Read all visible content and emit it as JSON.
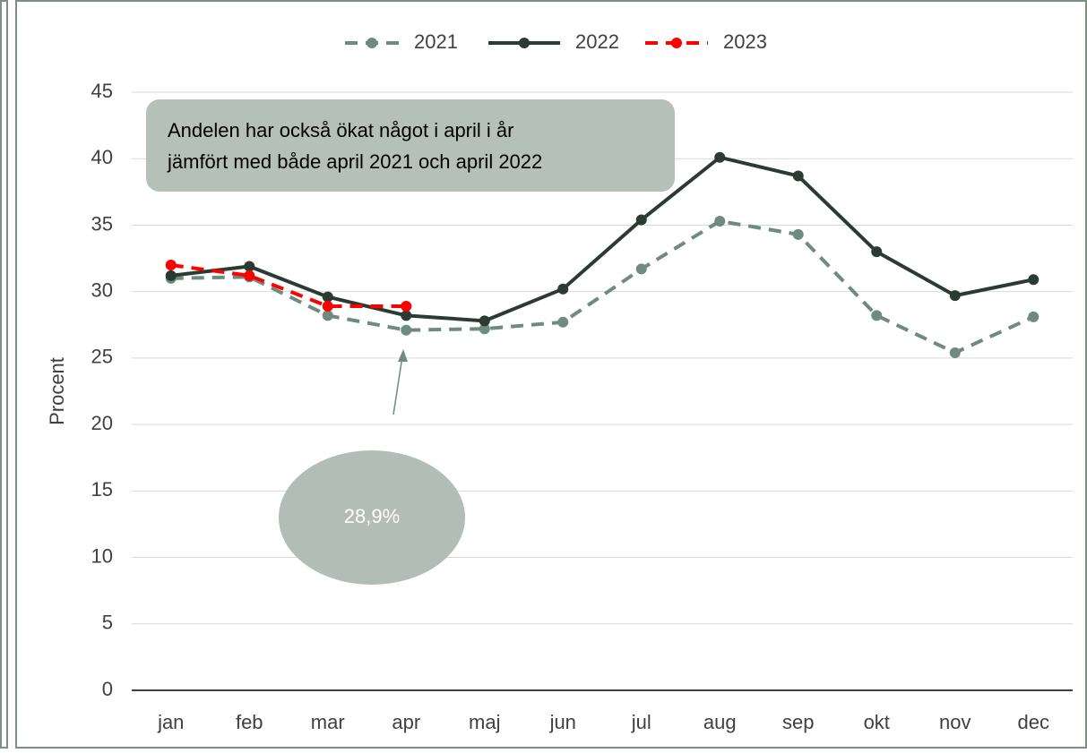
{
  "chart_data": {
    "type": "line",
    "ylabel": "Procent",
    "categories": [
      "jan",
      "feb",
      "mar",
      "apr",
      "maj",
      "jun",
      "jul",
      "aug",
      "sep",
      "okt",
      "nov",
      "dec"
    ],
    "series": [
      {
        "name": "2021",
        "color": "#6f8a7e",
        "dashed": true,
        "values": [
          31,
          31.1,
          28.2,
          27.1,
          27.2,
          27.7,
          31.7,
          35.3,
          34.3,
          28.2,
          25.4,
          28.1
        ]
      },
      {
        "name": "2022",
        "color": "#2b3a33",
        "dashed": false,
        "values": [
          31.2,
          31.9,
          29.6,
          28.2,
          27.8,
          30.2,
          35.4,
          40.1,
          38.7,
          33,
          29.7,
          30.9
        ]
      },
      {
        "name": "2023",
        "color": "#ff0000",
        "dashed": true,
        "values": [
          32,
          31.2,
          28.9,
          28.9,
          null,
          null,
          null,
          null,
          null,
          null,
          null,
          null
        ]
      }
    ],
    "ylim": [
      0,
      45
    ],
    "yticks": [
      0,
      5,
      10,
      15,
      20,
      25,
      30,
      35,
      40,
      45
    ],
    "grid": true,
    "legend": "top",
    "annotation": [
      "Andelen har också ökat något i april i år",
      "jämfört med både april 2021 och april 2022"
    ],
    "callout": "28,9%"
  }
}
